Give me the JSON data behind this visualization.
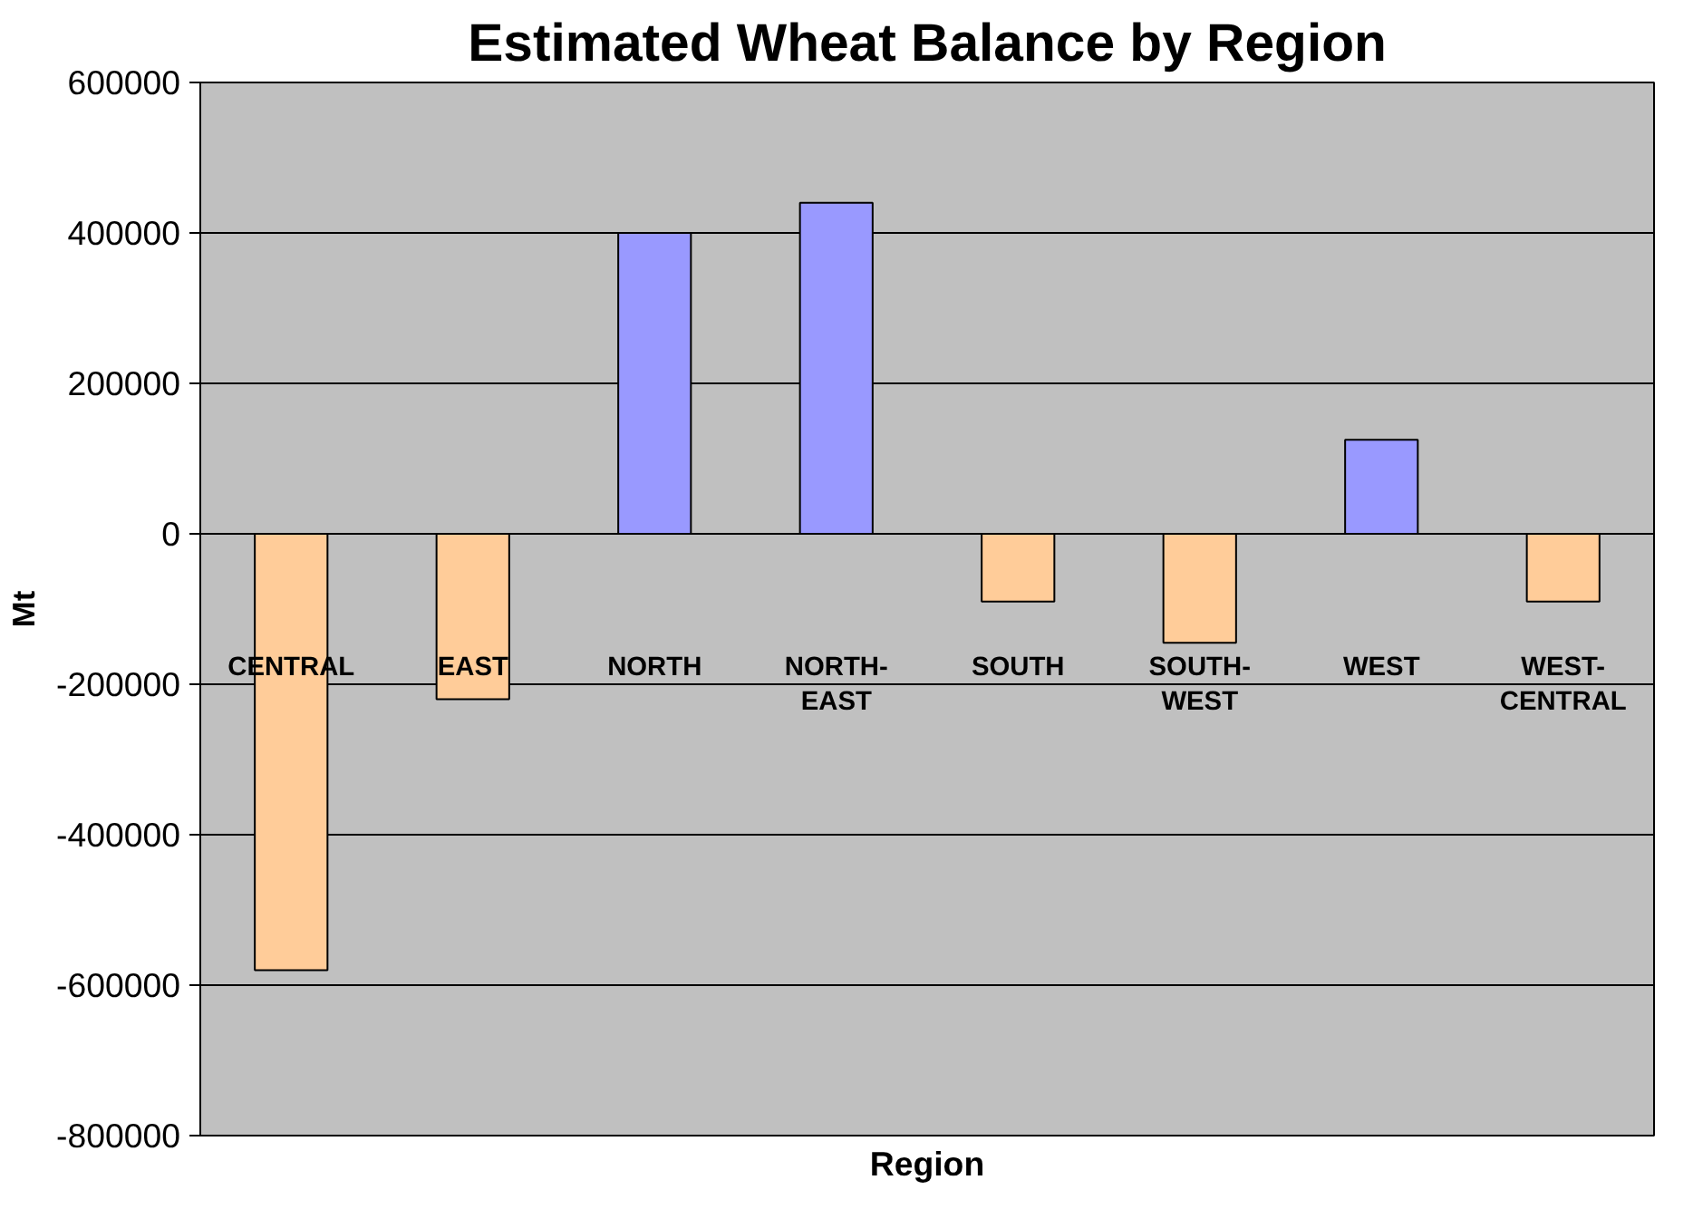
{
  "chart_data": {
    "type": "bar",
    "title": "Estimated Wheat Balance by Region",
    "xlabel": "Region",
    "ylabel": "Mt",
    "categories": [
      "CENTRAL",
      "EAST",
      "NORTH",
      "NORTH-EAST",
      "SOUTH",
      "SOUTH-WEST",
      "WEST",
      "WEST-CENTRAL"
    ],
    "values": [
      -580000,
      -220000,
      400000,
      440000,
      -90000,
      -145000,
      125000,
      -90000
    ],
    "colors": [
      "#ffcc99",
      "#ffcc99",
      "#9999ff",
      "#9999ff",
      "#ffcc99",
      "#ffcc99",
      "#9999ff",
      "#ffcc99"
    ],
    "ylim": [
      -800000,
      600000
    ],
    "yticks": [
      -800000,
      -600000,
      -400000,
      -200000,
      0,
      200000,
      400000,
      600000
    ],
    "grid": "y"
  }
}
